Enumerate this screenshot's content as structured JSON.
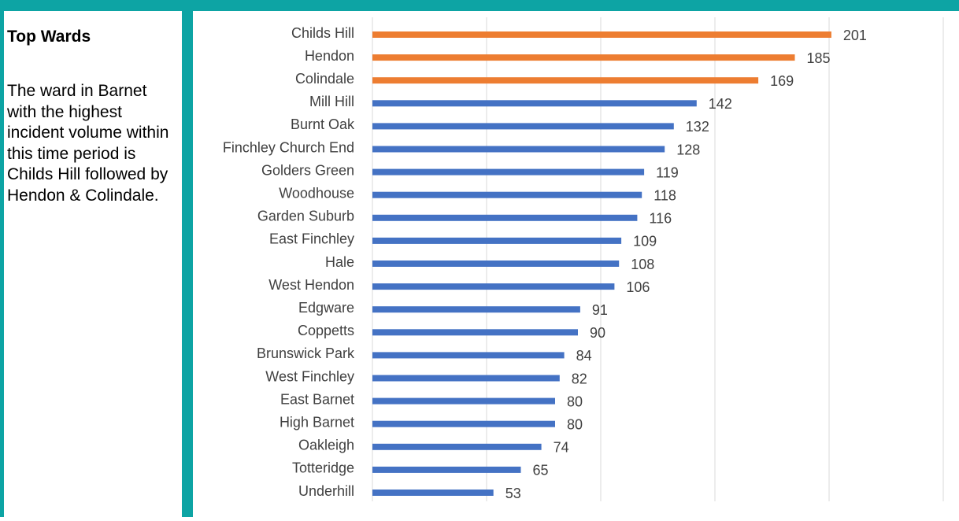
{
  "panel": {
    "title": "Top Wards",
    "body": "The ward in Barnet with the highest incident volume within this time period is Childs Hill followed by Hendon & Colindale."
  },
  "colors": {
    "frame": "#0da4a4",
    "highlight_bar": "#ed7d31",
    "default_bar": "#4472c4",
    "grid": "#d9d9d9",
    "label_text": "#404040"
  },
  "chart_data": {
    "type": "bar",
    "orientation": "horizontal",
    "categories": [
      "Childs Hill",
      "Hendon",
      "Colindale",
      "Mill Hill",
      "Burnt Oak",
      "Finchley Church End",
      "Golders Green",
      "Woodhouse",
      "Garden Suburb",
      "East Finchley",
      "Hale",
      "West Hendon",
      "Edgware",
      "Coppetts",
      "Brunswick Park",
      "West Finchley",
      "East Barnet",
      "High Barnet",
      "Oakleigh",
      "Totteridge",
      "Underhill"
    ],
    "values": [
      201,
      185,
      169,
      142,
      132,
      128,
      119,
      118,
      116,
      109,
      108,
      106,
      91,
      90,
      84,
      82,
      80,
      80,
      74,
      65,
      53
    ],
    "data_labels": [
      "201",
      "185",
      "169",
      "142",
      "132",
      "128",
      "119",
      "118",
      "116",
      "109",
      "108",
      "106",
      "91",
      "90",
      "84",
      "82",
      "80",
      "80",
      "74",
      "65",
      "53"
    ],
    "highlighted": [
      "Childs Hill",
      "Hendon",
      "Colindale"
    ],
    "xlim": [
      0,
      250
    ],
    "gridlines": [
      0,
      50,
      100,
      150,
      200,
      250
    ],
    "grid": true,
    "legend": false
  }
}
